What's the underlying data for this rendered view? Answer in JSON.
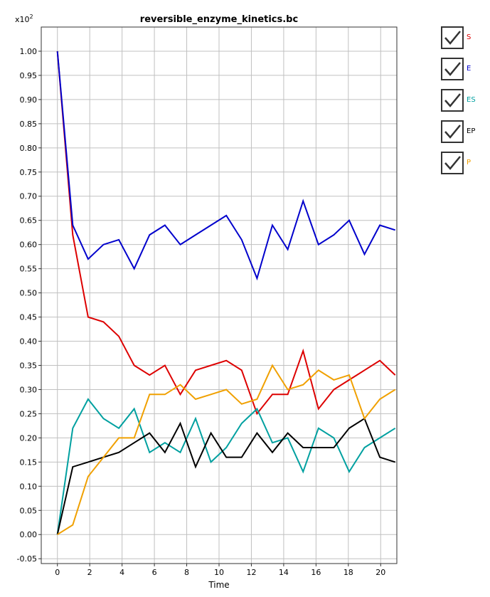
{
  "chart_data": {
    "type": "line",
    "title": "reversible_enzyme_kinetics.bc",
    "xlabel": "Time",
    "ylabel": "",
    "multiplier": "x10",
    "multiplier_exp": "2",
    "xlim": [
      -1,
      21
    ],
    "ylim": [
      -0.06,
      1.05
    ],
    "xticks": [
      "0",
      "2",
      "4",
      "6",
      "8",
      "10",
      "12",
      "14",
      "16",
      "18",
      "20"
    ],
    "yticks": [
      "-0.05",
      "0.00",
      "0.05",
      "0.10",
      "0.15",
      "0.20",
      "0.25",
      "0.30",
      "0.35",
      "0.40",
      "0.45",
      "0.50",
      "0.55",
      "0.60",
      "0.65",
      "0.70",
      "0.75",
      "0.80",
      "0.85",
      "0.90",
      "0.95",
      "1.00"
    ],
    "grid": true,
    "legend_position": "right",
    "x": [
      0,
      0.95,
      1.9,
      2.85,
      3.8,
      4.75,
      5.7,
      6.65,
      7.6,
      8.55,
      9.5,
      10.45,
      11.4,
      12.35,
      13.3,
      14.25,
      15.2,
      16.15,
      17.1,
      18.05,
      19,
      19.95,
      20.9
    ],
    "series": [
      {
        "name": "S",
        "color": "#dd0000",
        "values": [
          1.0,
          0.62,
          0.45,
          0.44,
          0.41,
          0.35,
          0.33,
          0.35,
          0.29,
          0.34,
          0.35,
          0.36,
          0.34,
          0.25,
          0.29,
          0.29,
          0.38,
          0.26,
          0.3,
          0.32,
          0.34,
          0.36,
          0.33
        ]
      },
      {
        "name": "E",
        "color": "#0000cc",
        "values": [
          1.0,
          0.64,
          0.57,
          0.6,
          0.61,
          0.55,
          0.62,
          0.64,
          0.6,
          0.62,
          0.64,
          0.66,
          0.61,
          0.53,
          0.64,
          0.59,
          0.69,
          0.6,
          0.62,
          0.65,
          0.58,
          0.64,
          0.63
        ]
      },
      {
        "name": "ES",
        "color": "#00a0a0",
        "values": [
          0.0,
          0.22,
          0.28,
          0.24,
          0.22,
          0.26,
          0.17,
          0.19,
          0.17,
          0.24,
          0.15,
          0.18,
          0.23,
          0.26,
          0.19,
          0.2,
          0.13,
          0.22,
          0.2,
          0.13,
          0.18,
          0.2,
          0.22
        ]
      },
      {
        "name": "EP",
        "color": "#000000",
        "values": [
          0.0,
          0.14,
          0.15,
          0.16,
          0.17,
          0.19,
          0.21,
          0.17,
          0.23,
          0.14,
          0.21,
          0.16,
          0.16,
          0.21,
          0.17,
          0.21,
          0.18,
          0.18,
          0.18,
          0.22,
          0.24,
          0.16,
          0.15
        ]
      },
      {
        "name": "P",
        "color": "#f0a000",
        "values": [
          0.0,
          0.02,
          0.12,
          0.16,
          0.2,
          0.2,
          0.29,
          0.29,
          0.31,
          0.28,
          0.29,
          0.3,
          0.27,
          0.28,
          0.35,
          0.3,
          0.31,
          0.34,
          0.32,
          0.33,
          0.24,
          0.28,
          0.3
        ]
      }
    ]
  }
}
